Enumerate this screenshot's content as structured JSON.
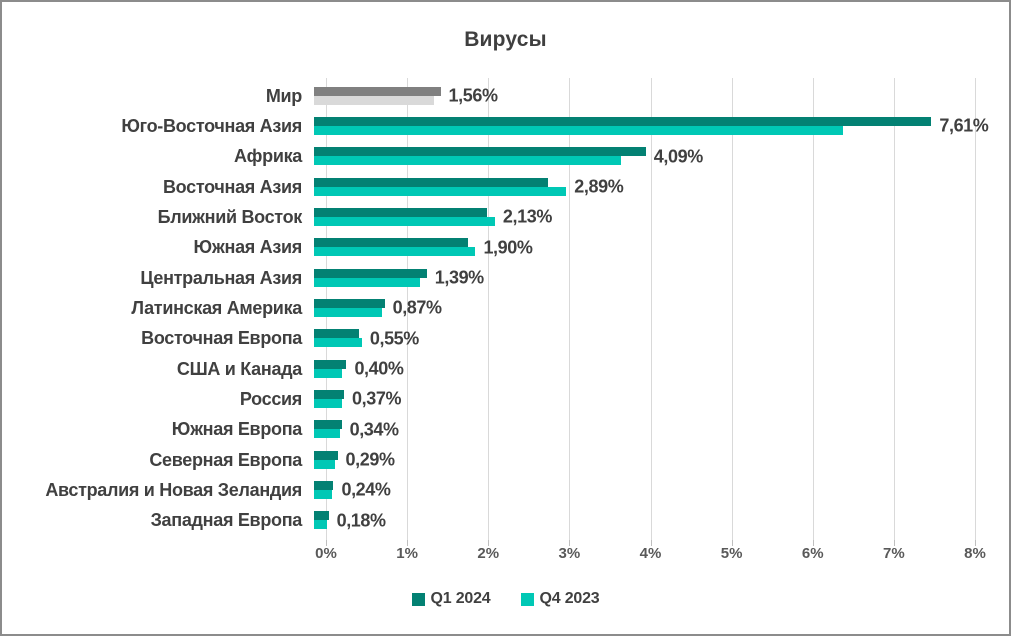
{
  "title": "Вирусы",
  "chart_data": {
    "type": "bar",
    "orientation": "horizontal",
    "title": "Вирусы",
    "categories": [
      "Мир",
      "Юго-Восточная Азия",
      "Африка",
      "Восточная Азия",
      "Ближний Восток",
      "Южная Азия",
      "Центральная Азия",
      "Латинская Америка",
      "Восточная Европа",
      "США и Канада",
      "Россия",
      "Южная Европа",
      "Северная Европа",
      "Австралия и Новая Зеландия",
      "Западная Европа"
    ],
    "series": [
      {
        "name": "Q1 2024",
        "color": "#038173",
        "values": [
          1.56,
          7.61,
          4.09,
          2.89,
          2.13,
          1.9,
          1.39,
          0.87,
          0.55,
          0.4,
          0.37,
          0.34,
          0.29,
          0.24,
          0.18
        ]
      },
      {
        "name": "Q4 2023",
        "color": "#00c8b5",
        "values": [
          1.48,
          6.52,
          3.79,
          3.11,
          2.23,
          1.99,
          1.31,
          0.84,
          0.59,
          0.35,
          0.35,
          0.32,
          0.26,
          0.22,
          0.16
        ]
      }
    ],
    "value_labels": [
      "1,56%",
      "7,61%",
      "4,09%",
      "2,89%",
      "2,13%",
      "1,90%",
      "1,39%",
      "0,87%",
      "0,55%",
      "0,40%",
      "0,37%",
      "0,34%",
      "0,29%",
      "0,24%",
      "0,18%"
    ],
    "highlight_row": {
      "category": "Мир",
      "colors": [
        "#808080",
        "#d9d9d9"
      ]
    },
    "xlim": [
      0,
      8
    ],
    "x_tick_labels": [
      "0%",
      "1%",
      "2%",
      "3%",
      "4%",
      "5%",
      "6%",
      "7%",
      "8%"
    ],
    "grid": "vertical",
    "gridline_color": "#d9d9d9",
    "legend_position": "bottom"
  },
  "legend": {
    "items": [
      {
        "label": "Q1 2024",
        "color": "#038173"
      },
      {
        "label": "Q4 2023",
        "color": "#00c8b5"
      }
    ]
  }
}
